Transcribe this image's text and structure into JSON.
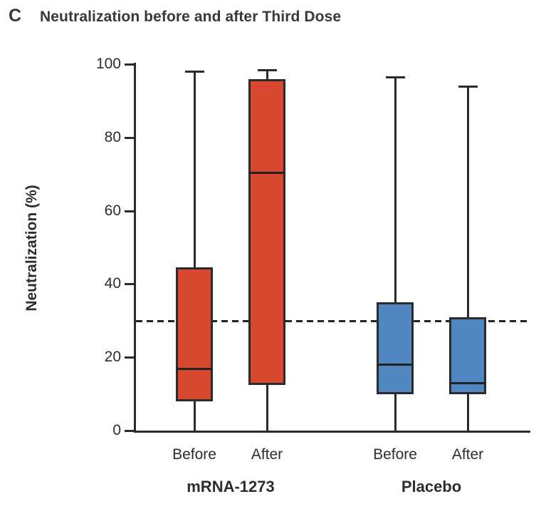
{
  "chart_data": {
    "type": "boxplot",
    "panel_letter": "C",
    "title": "Neutralization before and after Third Dose",
    "ylabel": "Neutralization (%)",
    "ylim": [
      0,
      100
    ],
    "yticks": [
      0,
      20,
      40,
      60,
      80,
      100
    ],
    "grid": false,
    "legend": "none",
    "threshold_line": {
      "value": 30,
      "style": "dashed",
      "color": "#232323"
    },
    "colors": {
      "mrna_box": "#d8482e",
      "placebo_box": "#5187c1",
      "line": "#2b2b2b",
      "text": "#2d2d2d"
    },
    "groups": [
      {
        "label": "mRNA-1273",
        "color": "#d8482e",
        "boxes": [
          {
            "label": "Before",
            "min": 0,
            "q1": 8,
            "median": 17,
            "q3": 44.5,
            "max": 98
          },
          {
            "label": "After",
            "min": 0,
            "q1": 12.5,
            "median": 70.5,
            "q3": 96,
            "max": 98.5
          }
        ]
      },
      {
        "label": "Placebo",
        "color": "#5187c1",
        "boxes": [
          {
            "label": "Before",
            "min": 0,
            "q1": 10,
            "median": 18,
            "q3": 35,
            "max": 96.5
          },
          {
            "label": "After",
            "min": 0,
            "q1": 10,
            "median": 13,
            "q3": 31,
            "max": 94
          }
        ]
      }
    ]
  }
}
